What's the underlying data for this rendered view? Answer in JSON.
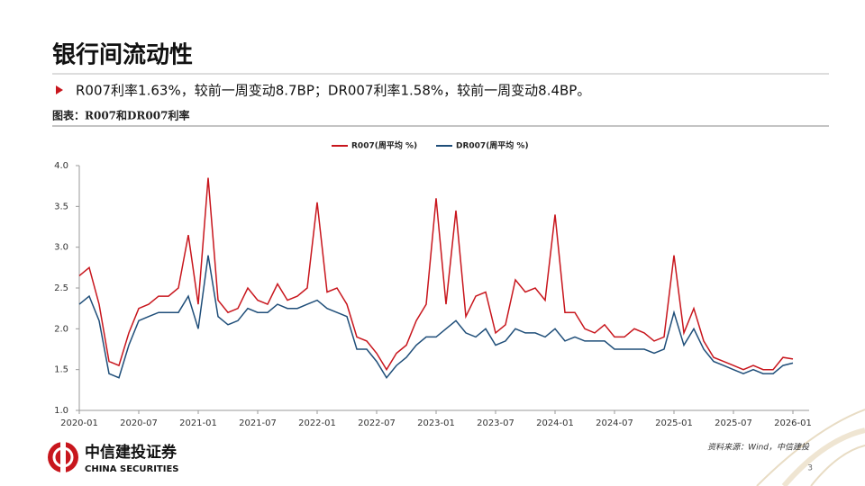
{
  "header": {
    "title": "银行间流动性",
    "bullet": "R007利率1.63%，较前一周变动8.7BP；DR007利率1.58%，较前一周变动8.4BP。",
    "caption": "图表：R007和DR007利率"
  },
  "footer": {
    "source": "资料来源：Wind，中信建投",
    "page": "3",
    "logo_cn": "中信建投证券",
    "logo_en": "CHINA SECURITIES"
  },
  "chart_data": {
    "type": "line",
    "x": [
      "2020-01",
      "2020-02",
      "2020-03",
      "2020-04",
      "2020-05",
      "2020-06",
      "2020-07",
      "2020-08",
      "2020-09",
      "2020-10",
      "2020-11",
      "2020-12",
      "2021-01",
      "2021-02",
      "2021-03",
      "2021-04",
      "2021-05",
      "2021-06",
      "2021-07",
      "2021-08",
      "2021-09",
      "2021-10",
      "2021-11",
      "2021-12",
      "2022-01",
      "2022-02",
      "2022-03",
      "2022-04",
      "2022-05",
      "2022-06",
      "2022-07",
      "2022-08",
      "2022-09",
      "2022-10",
      "2022-11",
      "2022-12",
      "2023-01",
      "2023-02",
      "2023-03",
      "2023-04",
      "2023-05",
      "2023-06",
      "2023-07",
      "2023-08",
      "2023-09",
      "2023-10",
      "2023-11",
      "2023-12",
      "2024-01",
      "2024-02",
      "2024-03",
      "2024-04",
      "2024-05",
      "2024-06",
      "2024-07",
      "2024-08",
      "2024-09",
      "2024-10",
      "2024-11",
      "2024-12",
      "2025-01",
      "2025-02",
      "2025-03",
      "2025-04",
      "2025-05",
      "2025-06",
      "2025-07",
      "2025-08",
      "2025-09",
      "2025-10",
      "2025-11",
      "2025-12",
      "2026-01"
    ],
    "series": [
      {
        "name": "R007(周平均 %)",
        "color": "#c8161d",
        "values": [
          2.65,
          2.75,
          2.3,
          1.6,
          1.55,
          1.95,
          2.25,
          2.3,
          2.4,
          2.4,
          2.5,
          3.15,
          2.3,
          3.85,
          2.35,
          2.2,
          2.25,
          2.5,
          2.35,
          2.3,
          2.55,
          2.35,
          2.4,
          2.5,
          3.55,
          2.45,
          2.5,
          2.3,
          1.9,
          1.85,
          1.7,
          1.5,
          1.7,
          1.8,
          2.1,
          2.3,
          3.6,
          2.3,
          3.45,
          2.15,
          2.4,
          2.45,
          1.95,
          2.05,
          2.6,
          2.45,
          2.5,
          2.35,
          3.4,
          2.2,
          2.2,
          2.0,
          1.95,
          2.05,
          1.9,
          1.9,
          2.0,
          1.95,
          1.85,
          1.9,
          2.9,
          1.95,
          2.25,
          1.85,
          1.65,
          1.6,
          1.55,
          1.5,
          1.55,
          1.5,
          1.5,
          1.65,
          1.63
        ]
      },
      {
        "name": "DR007(周平均 %)",
        "color": "#1f4e79",
        "values": [
          2.3,
          2.4,
          2.1,
          1.45,
          1.4,
          1.8,
          2.1,
          2.15,
          2.2,
          2.2,
          2.2,
          2.4,
          2.0,
          2.9,
          2.15,
          2.05,
          2.1,
          2.25,
          2.2,
          2.2,
          2.3,
          2.25,
          2.25,
          2.3,
          2.35,
          2.25,
          2.2,
          2.15,
          1.75,
          1.75,
          1.6,
          1.4,
          1.55,
          1.65,
          1.8,
          1.9,
          1.9,
          2.0,
          2.1,
          1.95,
          1.9,
          2.0,
          1.8,
          1.85,
          2.0,
          1.95,
          1.95,
          1.9,
          2.0,
          1.85,
          1.9,
          1.85,
          1.85,
          1.85,
          1.75,
          1.75,
          1.75,
          1.75,
          1.7,
          1.75,
          2.2,
          1.8,
          2.0,
          1.75,
          1.6,
          1.55,
          1.5,
          1.45,
          1.5,
          1.45,
          1.45,
          1.55,
          1.58
        ]
      }
    ],
    "xticks": [
      "2020-01",
      "2020-07",
      "2021-01",
      "2021-07",
      "2022-01",
      "2022-07",
      "2023-01",
      "2023-07",
      "2024-01",
      "2024-07",
      "2025-01",
      "2025-07",
      "2026-01"
    ],
    "ylim": [
      1,
      4
    ],
    "yticks": [
      {
        "value": 1,
        "label": "1.0"
      },
      {
        "value": 1.5,
        "label": "1.5"
      },
      {
        "value": 2,
        "label": "2.0"
      },
      {
        "value": 2.5,
        "label": "2.5"
      },
      {
        "value": 3,
        "label": "3.0"
      },
      {
        "value": 3.5,
        "label": "3.5"
      },
      {
        "value": 4,
        "label": "4.0"
      }
    ],
    "legend": "top"
  }
}
